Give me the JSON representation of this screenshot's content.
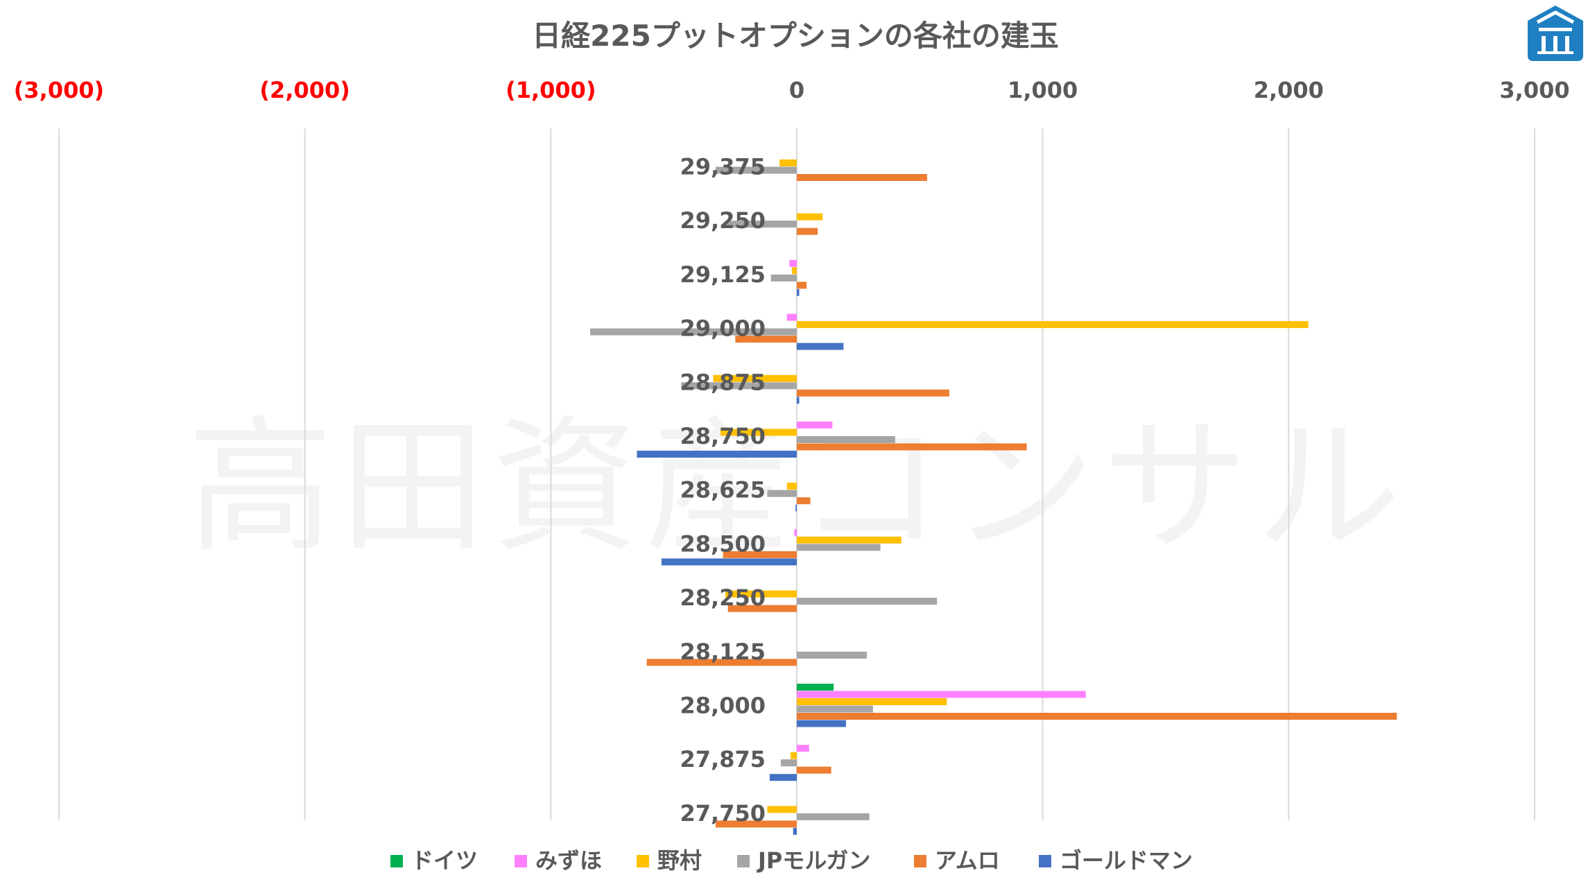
{
  "chart_data": {
    "type": "bar",
    "orientation": "horizontal",
    "title": "日経225プットオプションの各社の建玉",
    "watermark": "高田資産コンサル",
    "logo": "takata-logo-icon",
    "xlim": [
      -3000,
      3000
    ],
    "x_ticks": [
      {
        "value": -3000,
        "label": "(3,000)",
        "color": "#ff0000"
      },
      {
        "value": -2000,
        "label": "(2,000)",
        "color": "#ff0000"
      },
      {
        "value": -1000,
        "label": "(1,000)",
        "color": "#ff0000"
      },
      {
        "value": 0,
        "label": "0",
        "color": "#595959"
      },
      {
        "value": 1000,
        "label": "1,000",
        "color": "#595959"
      },
      {
        "value": 2000,
        "label": "2,000",
        "color": "#595959"
      },
      {
        "value": 3000,
        "label": "3,000",
        "color": "#595959"
      }
    ],
    "categories": [
      "29,375",
      "29,250",
      "29,125",
      "29,000",
      "28,875",
      "28,750",
      "28,625",
      "28,500",
      "28,250",
      "28,125",
      "28,000",
      "27,875",
      "27,750"
    ],
    "series": [
      {
        "name": "ドイツ",
        "color": "#00b050",
        "values": [
          0,
          0,
          0,
          0,
          0,
          0,
          0,
          0,
          0,
          0,
          150,
          0,
          0
        ]
      },
      {
        "name": "みずほ",
        "color": "#ff80ff",
        "values": [
          0,
          0,
          -30,
          -40,
          0,
          145,
          0,
          -10,
          0,
          0,
          1175,
          50,
          0
        ]
      },
      {
        "name": "野村",
        "color": "#ffc000",
        "values": [
          -70,
          105,
          -20,
          2080,
          -340,
          -310,
          -40,
          425,
          -290,
          0,
          610,
          -25,
          -120
        ]
      },
      {
        "name": "JPモルガン",
        "color": "#a5a5a5",
        "values": [
          -330,
          -290,
          -105,
          -840,
          -470,
          400,
          -120,
          340,
          570,
          285,
          310,
          -65,
          295
        ]
      },
      {
        "name": "アムロ",
        "color": "#ed7d31",
        "values": [
          530,
          85,
          40,
          -250,
          620,
          935,
          55,
          -300,
          -280,
          -610,
          2440,
          140,
          -330
        ]
      },
      {
        "name": "ゴールドマン",
        "color": "#4472c4",
        "values": [
          0,
          0,
          10,
          190,
          10,
          -650,
          -5,
          -550,
          0,
          0,
          200,
          -110,
          -15
        ]
      }
    ],
    "legend": "bottom",
    "grid": "vertical"
  }
}
